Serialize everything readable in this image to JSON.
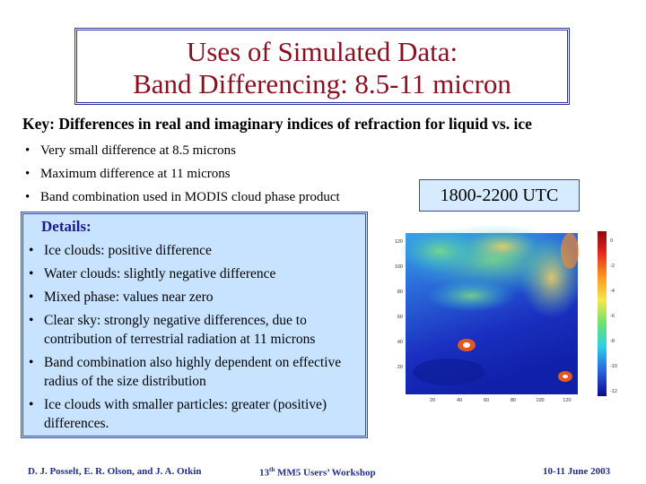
{
  "title": {
    "line1": "Uses of Simulated Data:",
    "line2": "Band Differencing: 8.5-11 micron"
  },
  "key": "Key: Differences in real and imaginary indices of refraction for liquid vs. ice",
  "bullets": [
    "Very small difference at 8.5 microns",
    "Maximum difference at 11 microns",
    "Band combination used in MODIS cloud phase product"
  ],
  "time_label": "1800-2200 UTC",
  "details": {
    "title": "Details:",
    "items": [
      "Ice clouds: positive difference",
      "Water clouds: slightly negative difference",
      "Mixed phase: values near zero",
      "Clear sky: strongly negative differences, due to contribution of terrestrial radiation at 11 microns",
      "Band combination also highly dependent on effective radius of the size distribution",
      "Ice clouds with smaller particles: greater (positive) differences."
    ]
  },
  "map": {
    "x_ticks": [
      "20",
      "40",
      "60",
      "80",
      "100",
      "120"
    ],
    "y_ticks": [
      "120",
      "100",
      "80",
      "60",
      "40",
      "20"
    ],
    "colorbar_ticks": [
      "0",
      "-2",
      "-4",
      "-6",
      "-8",
      "-10",
      "-12"
    ]
  },
  "footer": {
    "authors": "D. J. Posselt, E. R. Olson, and J. A. Otkin",
    "workshop_num": "13",
    "workshop_sup": "th",
    "workshop_rest": " MM5 Users’ Workshop",
    "date": "10-11 June 2003"
  },
  "colors": {
    "title": "#8b0f1f",
    "details_bg": "#c7e3ff",
    "utc_bg": "#d6ebff",
    "footer": "#1f2e8a"
  }
}
